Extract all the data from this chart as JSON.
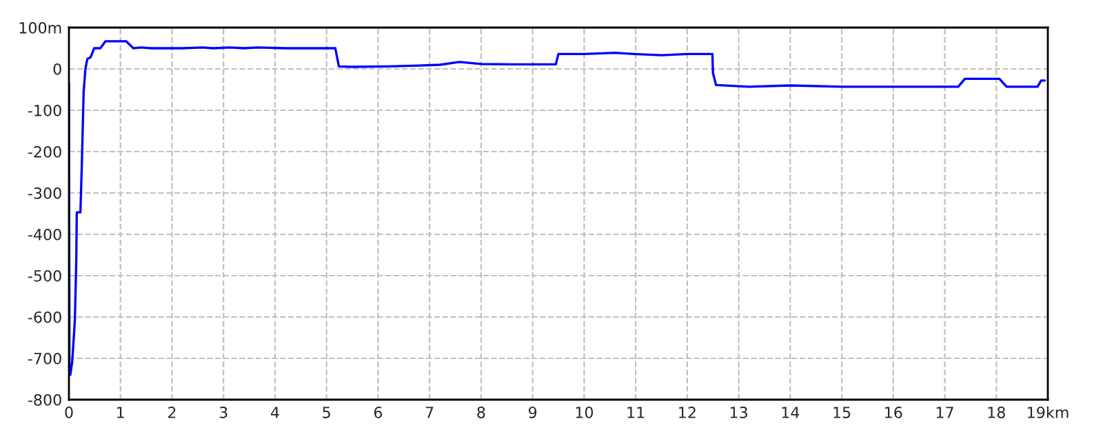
{
  "chart_data": {
    "type": "line",
    "x": [
      0,
      0.01,
      0.027,
      0.062,
      0.089,
      0.116,
      0.143,
      0.152,
      0.223,
      0.25,
      0.285,
      0.32,
      0.357,
      0.42,
      0.49,
      0.61,
      0.71,
      1.11,
      1.25,
      1.4,
      1.6,
      2.2,
      2.59,
      2.8,
      3.12,
      3.4,
      3.66,
      4.2,
      5.17,
      5.24,
      5.5,
      6.2,
      6.8,
      7.2,
      7.58,
      8.0,
      8.6,
      9.45,
      9.5,
      10.0,
      10.6,
      10.97,
      11.5,
      12.0,
      12.49,
      12.5,
      12.56,
      13.2,
      14.0,
      15.0,
      16.0,
      17.26,
      17.39,
      18.06,
      18.2,
      18.8,
      18.87,
      18.94
    ],
    "series": [
      {
        "color": "#0000ff",
        "values": [
          -35,
          -740,
          -740,
          -710,
          -660,
          -605,
          -460,
          -347,
          -347,
          -233,
          -56,
          0,
          24,
          28,
          50,
          50,
          67,
          67,
          50,
          52,
          50,
          50,
          52,
          50,
          52,
          50,
          52,
          50,
          50,
          6,
          5,
          6,
          8,
          10,
          17,
          12,
          11,
          11,
          36,
          36,
          39,
          36,
          33,
          36,
          36,
          -10,
          -39,
          -43,
          -40,
          -43,
          -43,
          -43,
          -24,
          -24,
          -43,
          -43,
          -28,
          -28
        ]
      }
    ],
    "xlim": [
      0,
      19
    ],
    "ylim": [
      -800,
      100
    ],
    "xticks": [
      0,
      1,
      2,
      3,
      4,
      5,
      6,
      7,
      8,
      9,
      10,
      11,
      12,
      13,
      14,
      15,
      16,
      17,
      18,
      {
        "value": 19,
        "label": "19km"
      }
    ],
    "yticks": [
      -800,
      -700,
      -600,
      -500,
      -400,
      -300,
      -200,
      -100,
      0,
      {
        "value": 100,
        "label": "100m"
      }
    ],
    "grid": true,
    "marker": "none",
    "line_style": "solid"
  }
}
